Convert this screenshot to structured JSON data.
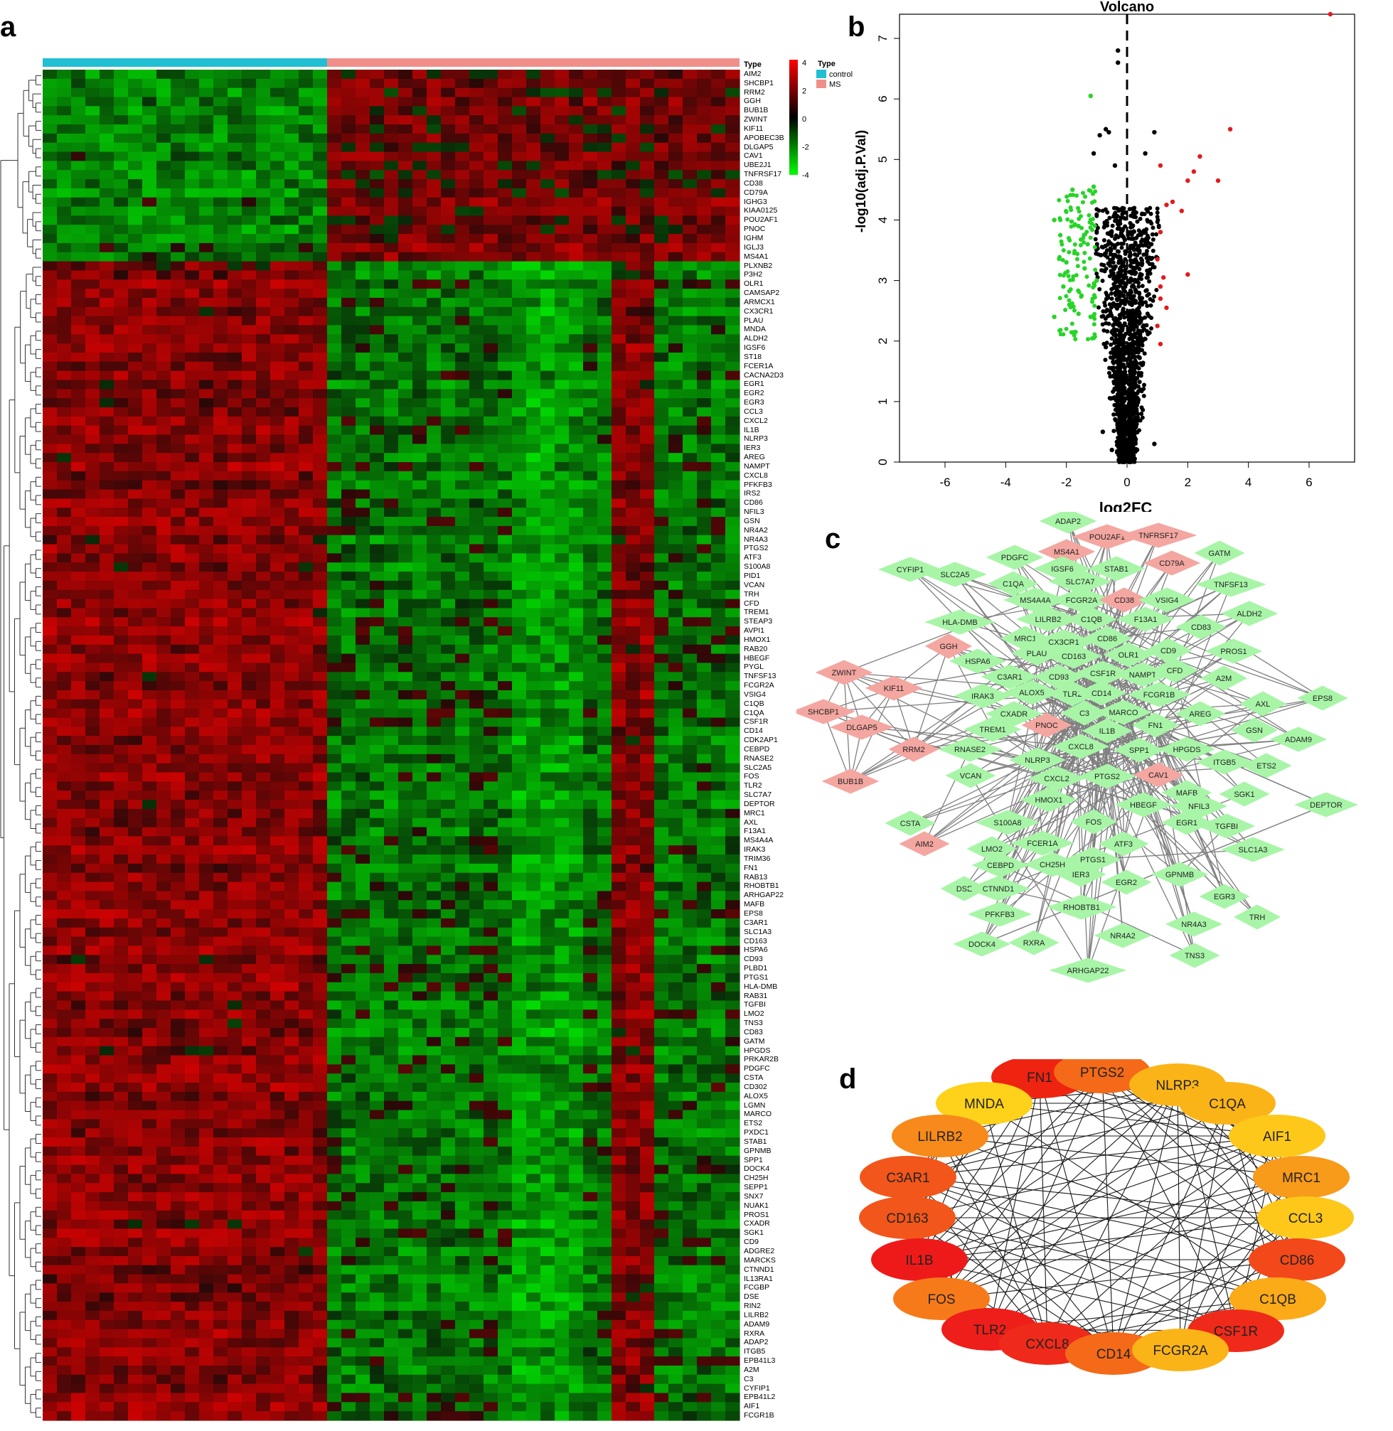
{
  "panels": {
    "a": "a",
    "b": "b",
    "c": "c",
    "d": "d"
  },
  "heatmap": {
    "type_label": "Type",
    "legend_title": "Type",
    "groups": [
      {
        "name": "control",
        "color": "#21bfd2",
        "n_samples": 20
      },
      {
        "name": "MS",
        "color": "#f08f8a",
        "n_samples": 29
      }
    ],
    "scale_ticks": [
      "4",
      "2",
      "0",
      "-2",
      "-4"
    ],
    "scale_colors": {
      "high": "#ff0000",
      "mid": "#000000",
      "low": "#00ff00"
    },
    "up_genes": [
      "AIM2",
      "SHCBP1",
      "RRM2",
      "GGH",
      "BUB1B",
      "ZWINT",
      "KIF11",
      "APOBEC3B",
      "DLGAP5",
      "CAV1",
      "UBE2J1",
      "TNFRSF17",
      "CD38",
      "CD79A",
      "IGHG3",
      "KIAA0125",
      "POU2AF1",
      "PNOC",
      "IGHM",
      "IGLJ3",
      "MS4A1"
    ],
    "down_genes": [
      "PLXNB2",
      "P3H2",
      "OLR1",
      "CAMSAP2",
      "ARMCX1",
      "CX3CR1",
      "PLAU",
      "MNDA",
      "ALDH2",
      "IGSF6",
      "ST18",
      "FCER1A",
      "CACNA2D3",
      "EGR1",
      "EGR2",
      "EGR3",
      "CCL3",
      "CXCL2",
      "IL1B",
      "NLRP3",
      "IER3",
      "AREG",
      "NAMPT",
      "CXCL8",
      "PFKFB3",
      "IRS2",
      "CD86",
      "NFIL3",
      "GSN",
      "NR4A2",
      "NR4A3",
      "PTGS2",
      "ATF3",
      "S100A8",
      "PID1",
      "VCAN",
      "TRH",
      "CFD",
      "TREM1",
      "STEAP3",
      "AVPI1",
      "HMOX1",
      "RAB20",
      "HBEGF",
      "PYGL",
      "TNFSF13",
      "FCGR2A",
      "VSIG4",
      "C1QB",
      "C1QA",
      "CSF1R",
      "CD14",
      "CDK2AP1",
      "CEBPD",
      "RNASE2",
      "SLC2A5",
      "FOS",
      "TLR2",
      "SLC7A7",
      "DEPTOR",
      "MRC1",
      "AXL",
      "F13A1",
      "MS4A4A",
      "IRAK3",
      "TRIM36",
      "FN1",
      "RAB13",
      "RHOBTB1",
      "ARHGAP22",
      "MAFB",
      "EPS8",
      "C3AR1",
      "SLC1A3",
      "CD163",
      "HSPA6",
      "CD93",
      "PLBD1",
      "PTGS1",
      "HLA-DMB",
      "RAB31",
      "TGFBI",
      "LMO2",
      "TNS3",
      "CD83",
      "GATM",
      "HPGDS",
      "PRKAR2B",
      "PDGFC",
      "CSTA",
      "CD302",
      "ALOX5",
      "LGMN",
      "MARCO",
      "ETS2",
      "PXDC1",
      "STAB1",
      "GPNMB",
      "SPP1",
      "DOCK4",
      "CH25H",
      "SEPP1",
      "SNX7",
      "NUAK1",
      "PROS1",
      "CXADR",
      "SGK1",
      "CD9",
      "ADGRE2",
      "MARCKS",
      "CTNND1",
      "IL13RA1",
      "FCGBP",
      "DSE",
      "RIN2",
      "LILRB2",
      "ADAM9",
      "RXRA",
      "ADAP2",
      "ITGB5",
      "EPB41L3",
      "A2M",
      "C3",
      "CYFIP1",
      "EPB41L2",
      "AIF1",
      "FCGR1B"
    ]
  },
  "volcano": {
    "title": "Volcano",
    "xlabel": "log2FC",
    "ylabel": "-log10(adj.P.Val)",
    "xticks": [
      "-6",
      "-4",
      "-2",
      "0",
      "2",
      "4",
      "6"
    ],
    "yticks": [
      "0",
      "1",
      "2",
      "3",
      "4",
      "5",
      "6",
      "7"
    ],
    "colors": {
      "up": "#e31a1c",
      "down": "#27d427",
      "ns": "#000000"
    }
  },
  "chart_data": [
    {
      "type": "scatter",
      "title": "Volcano",
      "xlabel": "log2FC",
      "ylabel": "-log10(adj.P.Val)",
      "xlim": [
        -7.5,
        7.5
      ],
      "ylim": [
        0,
        7.4
      ],
      "xticks": [
        -6,
        -4,
        -2,
        0,
        2,
        4,
        6
      ],
      "yticks": [
        0,
        1,
        2,
        3,
        4,
        5,
        6,
        7
      ],
      "thresholds": {
        "vline": 0
      },
      "series": [
        {
          "name": "up",
          "color": "#e31a1c",
          "points": [
            [
              6.7,
              7.4
            ],
            [
              3.4,
              5.5
            ],
            [
              2.4,
              5.05
            ],
            [
              3.0,
              4.65
            ],
            [
              2.2,
              4.8
            ],
            [
              2.0,
              4.65
            ],
            [
              1.1,
              4.9
            ],
            [
              1.3,
              4.25
            ],
            [
              1.5,
              4.3
            ],
            [
              1.8,
              4.15
            ],
            [
              1.1,
              3.8
            ],
            [
              1.0,
              3.35
            ],
            [
              1.2,
              3.05
            ],
            [
              1.1,
              2.9
            ],
            [
              2.0,
              3.1
            ],
            [
              1.1,
              2.7
            ],
            [
              1.3,
              2.55
            ],
            [
              1.0,
              2.25
            ],
            [
              1.1,
              1.95
            ]
          ]
        },
        {
          "name": "down",
          "color": "#27d427",
          "points": [
            [
              -1.2,
              6.05
            ],
            [
              -1.1,
              4.55
            ],
            [
              -1.8,
              4.5
            ],
            [
              -2.2,
              3.75
            ],
            [
              -2.4,
              4.0
            ],
            [
              -2.0,
              3.3
            ],
            [
              -1.6,
              3.9
            ],
            [
              -1.4,
              3.2
            ],
            [
              -2.4,
              2.4
            ],
            [
              -1.9,
              2.6
            ],
            [
              -1.5,
              2.75
            ],
            [
              -1.2,
              2.4
            ],
            [
              -1.1,
              2.05
            ],
            [
              -1.7,
              2.15
            ],
            [
              -2.1,
              2.9
            ],
            [
              -1.3,
              3.6
            ],
            [
              -1.0,
              3.0
            ],
            [
              -1.6,
              2.45
            ]
          ]
        },
        {
          "name": "ns",
          "color": "#000000",
          "points": [
            [
              -0.3,
              6.8
            ],
            [
              -0.3,
              6.6
            ],
            [
              -0.9,
              5.4
            ],
            [
              -0.7,
              5.5
            ],
            [
              -0.6,
              5.45
            ],
            [
              0.9,
              5.45
            ],
            [
              -1.1,
              5.1
            ],
            [
              0.6,
              5.1
            ],
            [
              -0.4,
              4.9
            ],
            [
              0.8,
              3.6
            ],
            [
              -0.7,
              1.9
            ],
            [
              -0.8,
              0.5
            ],
            [
              0.9,
              0.3
            ],
            [
              -0.5,
              0.2
            ]
          ]
        }
      ]
    }
  ],
  "network": {
    "colors": {
      "up": "#f4a6a0",
      "down": "#a8f5a8",
      "edge": "#7f7f7f"
    },
    "nodes": [
      {
        "label": "ADAP2",
        "g": "d"
      },
      {
        "label": "POU2AF1",
        "g": "u"
      },
      {
        "label": "TNFRSF17",
        "g": "u"
      },
      {
        "label": "MS4A1",
        "g": "u"
      },
      {
        "label": "CD79A",
        "g": "u"
      },
      {
        "label": "GATM",
        "g": "d"
      },
      {
        "label": "CYFIP1",
        "g": "d"
      },
      {
        "label": "SLC2A5",
        "g": "d"
      },
      {
        "label": "PDGFC",
        "g": "d"
      },
      {
        "label": "IGSF6",
        "g": "d"
      },
      {
        "label": "STAB1",
        "g": "d"
      },
      {
        "label": "C1QA",
        "g": "d"
      },
      {
        "label": "SLC7A7",
        "g": "d"
      },
      {
        "label": "TNFSF13",
        "g": "d"
      },
      {
        "label": "MS4A4A",
        "g": "d"
      },
      {
        "label": "FCGR2A",
        "g": "d"
      },
      {
        "label": "CD38",
        "g": "u"
      },
      {
        "label": "VSIG4",
        "g": "d"
      },
      {
        "label": "ALDH2",
        "g": "d"
      },
      {
        "label": "HLA-DMB",
        "g": "d"
      },
      {
        "label": "LILRB2",
        "g": "d"
      },
      {
        "label": "C1QB",
        "g": "d"
      },
      {
        "label": "F13A1",
        "g": "d"
      },
      {
        "label": "CD83",
        "g": "d"
      },
      {
        "label": "GGH",
        "g": "u"
      },
      {
        "label": "MRC1",
        "g": "d"
      },
      {
        "label": "CX3CR1",
        "g": "d"
      },
      {
        "label": "CD86",
        "g": "d"
      },
      {
        "label": "HSPA6",
        "g": "d"
      },
      {
        "label": "PLAU",
        "g": "d"
      },
      {
        "label": "CD163",
        "g": "d"
      },
      {
        "label": "OLR1",
        "g": "d"
      },
      {
        "label": "CD9",
        "g": "d"
      },
      {
        "label": "PROS1",
        "g": "d"
      },
      {
        "label": "ZWINT",
        "g": "u"
      },
      {
        "label": "KIF11",
        "g": "u"
      },
      {
        "label": "C3AR1",
        "g": "d"
      },
      {
        "label": "CD93",
        "g": "d"
      },
      {
        "label": "CSF1R",
        "g": "d"
      },
      {
        "label": "NAMPT",
        "g": "d"
      },
      {
        "label": "CFD",
        "g": "d"
      },
      {
        "label": "A2M",
        "g": "d"
      },
      {
        "label": "IRAK3",
        "g": "d"
      },
      {
        "label": "ALOX5",
        "g": "d"
      },
      {
        "label": "TLR2",
        "g": "d"
      },
      {
        "label": "CD14",
        "g": "d"
      },
      {
        "label": "FCGR1B",
        "g": "d"
      },
      {
        "label": "AXL",
        "g": "d"
      },
      {
        "label": "EPS8",
        "g": "d"
      },
      {
        "label": "SHCBP1",
        "g": "u"
      },
      {
        "label": "CXADR",
        "g": "d"
      },
      {
        "label": "C3",
        "g": "d"
      },
      {
        "label": "MARCO",
        "g": "d"
      },
      {
        "label": "AREG",
        "g": "d"
      },
      {
        "label": "DLGAP5",
        "g": "u"
      },
      {
        "label": "TREM1",
        "g": "d"
      },
      {
        "label": "PNOC",
        "g": "u"
      },
      {
        "label": "IL1B",
        "g": "d"
      },
      {
        "label": "FN1",
        "g": "d"
      },
      {
        "label": "GSN",
        "g": "d"
      },
      {
        "label": "ADAM9",
        "g": "d"
      },
      {
        "label": "RNASE2",
        "g": "d"
      },
      {
        "label": "CXCL8",
        "g": "d"
      },
      {
        "label": "HPGDS",
        "g": "d"
      },
      {
        "label": "RRM2",
        "g": "u"
      },
      {
        "label": "NLRP3",
        "g": "d"
      },
      {
        "label": "SPP1",
        "g": "d"
      },
      {
        "label": "ITGB5",
        "g": "d"
      },
      {
        "label": "ETS2",
        "g": "d"
      },
      {
        "label": "CAV1",
        "g": "u"
      },
      {
        "label": "BUB1B",
        "g": "u"
      },
      {
        "label": "VCAN",
        "g": "d"
      },
      {
        "label": "CXCL2",
        "g": "d"
      },
      {
        "label": "PTGS2",
        "g": "d"
      },
      {
        "label": "MAFB",
        "g": "d"
      },
      {
        "label": "SGK1",
        "g": "d"
      },
      {
        "label": "HMOX1",
        "g": "d"
      },
      {
        "label": "HBEGF",
        "g": "d"
      },
      {
        "label": "NFIL3",
        "g": "d"
      },
      {
        "label": "DEPTOR",
        "g": "d"
      },
      {
        "label": "CSTA",
        "g": "d"
      },
      {
        "label": "S100A8",
        "g": "d"
      },
      {
        "label": "FOS",
        "g": "d"
      },
      {
        "label": "EGR1",
        "g": "d"
      },
      {
        "label": "TGFBI",
        "g": "d"
      },
      {
        "label": "AIM2",
        "g": "u"
      },
      {
        "label": "FCER1A",
        "g": "d"
      },
      {
        "label": "ATF3",
        "g": "d"
      },
      {
        "label": "SLC1A3",
        "g": "d"
      },
      {
        "label": "LMO2",
        "g": "d"
      },
      {
        "label": "PTGS1",
        "g": "d"
      },
      {
        "label": "CEBPD",
        "g": "d"
      },
      {
        "label": "CH25H",
        "g": "d"
      },
      {
        "label": "IER3",
        "g": "d"
      },
      {
        "label": "GPNMB",
        "g": "d"
      },
      {
        "label": "DSE",
        "g": "d"
      },
      {
        "label": "CTNND1",
        "g": "d"
      },
      {
        "label": "EGR2",
        "g": "d"
      },
      {
        "label": "EGR3",
        "g": "d"
      },
      {
        "label": "PFKFB3",
        "g": "d"
      },
      {
        "label": "RHOBTB1",
        "g": "d"
      },
      {
        "label": "NR4A3",
        "g": "d"
      },
      {
        "label": "TRH",
        "g": "d"
      },
      {
        "label": "DOCK4",
        "g": "d"
      },
      {
        "label": "RXRA",
        "g": "d"
      },
      {
        "label": "NR4A2",
        "g": "d"
      },
      {
        "label": "TNS3",
        "g": "d"
      },
      {
        "label": "ARHGAP22",
        "g": "d"
      }
    ]
  },
  "hub": {
    "nodes": [
      {
        "label": "FN1",
        "color": "#ee2411"
      },
      {
        "label": "PTGS2",
        "color": "#f46a18"
      },
      {
        "label": "NLRP3",
        "color": "#fbb418"
      },
      {
        "label": "C1QA",
        "color": "#fbb418"
      },
      {
        "label": "MNDA",
        "color": "#fed21a"
      },
      {
        "label": "LILRB2",
        "color": "#f78a1a"
      },
      {
        "label": "AIF1",
        "color": "#fec81a"
      },
      {
        "label": "C3AR1",
        "color": "#f2561a"
      },
      {
        "label": "MRC1",
        "color": "#f89a1a"
      },
      {
        "label": "CD163",
        "color": "#f2561a"
      },
      {
        "label": "CCL3",
        "color": "#fec81a"
      },
      {
        "label": "IL1B",
        "color": "#ee1a1a"
      },
      {
        "label": "CD86",
        "color": "#f2481a"
      },
      {
        "label": "FOS",
        "color": "#f77a1a"
      },
      {
        "label": "C1QB",
        "color": "#fbaa18"
      },
      {
        "label": "TLR2",
        "color": "#ee1e1a"
      },
      {
        "label": "CSF1R",
        "color": "#ef2a1a"
      },
      {
        "label": "CXCL8",
        "color": "#ef2a1a"
      },
      {
        "label": "CD14",
        "color": "#f46a18"
      },
      {
        "label": "FCGR2A",
        "color": "#fbb418"
      }
    ],
    "edge_color": "#1a1a1a"
  }
}
